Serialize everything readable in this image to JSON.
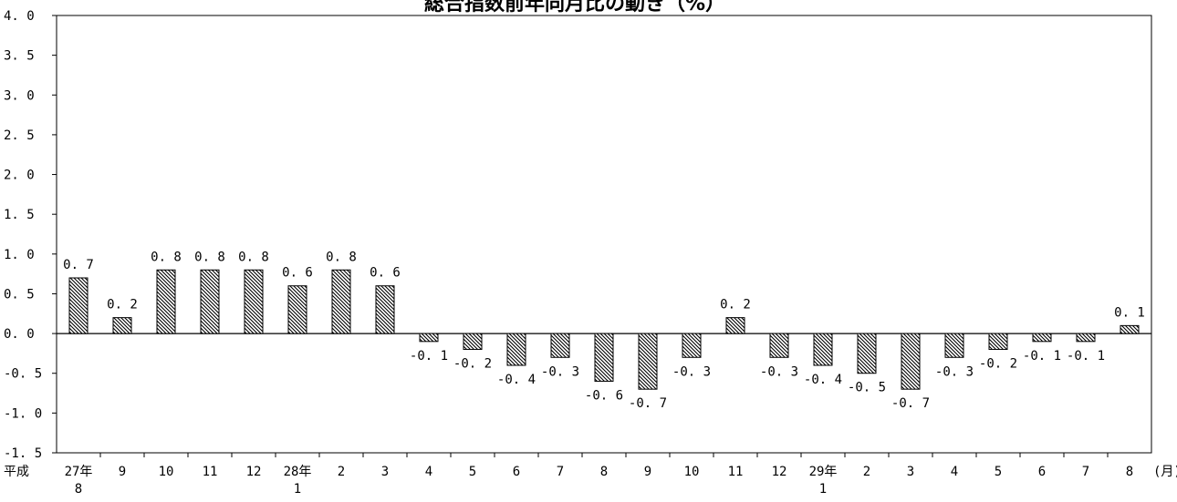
{
  "chart_data": {
    "type": "bar",
    "title": "総合指数前年同月比の動き（%）",
    "ylim": [
      -1.5,
      4.0
    ],
    "yticks": [
      "-1.5",
      "-1.0",
      "-0.5",
      "0.0",
      "0.5",
      "1.0",
      "1.5",
      "2.0",
      "2.5",
      "3.0",
      "3.5",
      "4.0"
    ],
    "era_label": "平成",
    "month_unit": "(月)",
    "categories": [
      {
        "label": "27年",
        "sub": "8"
      },
      {
        "label": "9",
        "sub": ""
      },
      {
        "label": "10",
        "sub": ""
      },
      {
        "label": "11",
        "sub": ""
      },
      {
        "label": "12",
        "sub": ""
      },
      {
        "label": "28年",
        "sub": "1"
      },
      {
        "label": "2",
        "sub": ""
      },
      {
        "label": "3",
        "sub": ""
      },
      {
        "label": "4",
        "sub": ""
      },
      {
        "label": "5",
        "sub": ""
      },
      {
        "label": "6",
        "sub": ""
      },
      {
        "label": "7",
        "sub": ""
      },
      {
        "label": "8",
        "sub": ""
      },
      {
        "label": "9",
        "sub": ""
      },
      {
        "label": "10",
        "sub": ""
      },
      {
        "label": "11",
        "sub": ""
      },
      {
        "label": "12",
        "sub": ""
      },
      {
        "label": "29年",
        "sub": "1"
      },
      {
        "label": "2",
        "sub": ""
      },
      {
        "label": "3",
        "sub": ""
      },
      {
        "label": "4",
        "sub": ""
      },
      {
        "label": "5",
        "sub": ""
      },
      {
        "label": "6",
        "sub": ""
      },
      {
        "label": "7",
        "sub": ""
      },
      {
        "label": "8",
        "sub": ""
      }
    ],
    "values": [
      0.7,
      0.2,
      0.8,
      0.8,
      0.8,
      0.6,
      0.8,
      0.6,
      -0.1,
      -0.2,
      -0.4,
      -0.3,
      -0.6,
      -0.7,
      -0.3,
      0.2,
      -0.3,
      -0.4,
      -0.5,
      -0.7,
      -0.3,
      -0.2,
      -0.1,
      -0.1,
      0.1
    ],
    "value_labels": [
      "0.7",
      "0.2",
      "0.8",
      "0.8",
      "0.8",
      "0.6",
      "0.8",
      "0.6",
      "-0.1",
      "-0.2",
      "-0.4",
      "-0.3",
      "-0.6",
      "-0.7",
      "-0.3",
      "0.2",
      "-0.3",
      "-0.4",
      "-0.5",
      "-0.7",
      "-0.3",
      "-0.2",
      "-0.1",
      "-0.1",
      "0.1"
    ],
    "bar_fill": "#ffffff",
    "bar_hatch": "#000000",
    "grid": false
  }
}
